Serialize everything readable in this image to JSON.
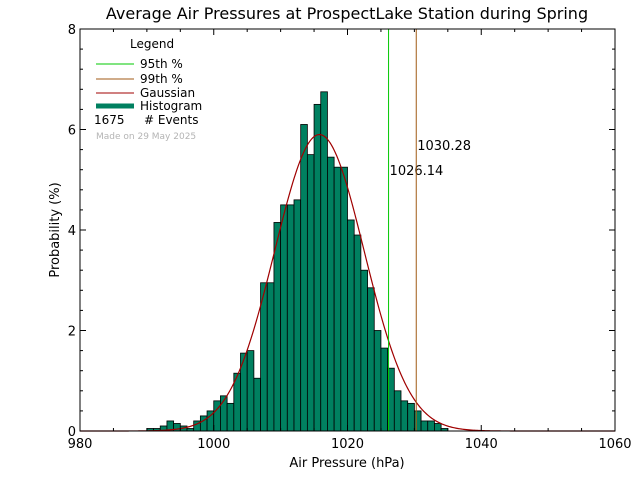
{
  "chart_data": {
    "type": "bar",
    "title": "Average Air Pressures at ProspectLake Station during Spring",
    "xlabel": "Air Pressure (hPa)",
    "ylabel": "Probability (%)",
    "xlim": [
      980,
      1060
    ],
    "ylim": [
      0,
      8
    ],
    "x_ticks": [
      "980",
      "1000",
      "1020",
      "1040",
      "1060"
    ],
    "y_ticks": [
      "0",
      "2",
      "4",
      "6",
      "8"
    ],
    "bin_width": 1,
    "histogram": {
      "name": "Histogram",
      "color": "#008060",
      "bin_starts": [
        990,
        991,
        992,
        993,
        994,
        995,
        996,
        997,
        998,
        999,
        1000,
        1001,
        1002,
        1003,
        1004,
        1005,
        1006,
        1007,
        1008,
        1009,
        1010,
        1011,
        1012,
        1013,
        1014,
        1015,
        1016,
        1017,
        1018,
        1019,
        1020,
        1021,
        1022,
        1023,
        1024,
        1025,
        1026,
        1027,
        1028,
        1029,
        1030,
        1031,
        1032,
        1033,
        1034
      ],
      "values": [
        0.05,
        0.05,
        0.1,
        0.2,
        0.15,
        0.1,
        0.05,
        0.2,
        0.3,
        0.4,
        0.6,
        0.7,
        0.55,
        1.15,
        1.55,
        1.6,
        1.05,
        2.95,
        2.95,
        4.15,
        4.5,
        4.5,
        4.6,
        6.1,
        5.5,
        6.5,
        6.75,
        5.45,
        5.25,
        5.25,
        4.2,
        3.9,
        3.2,
        2.85,
        2.0,
        1.65,
        1.25,
        0.8,
        0.6,
        0.55,
        0.4,
        0.2,
        0.2,
        0.15,
        0.05
      ]
    },
    "gaussian": {
      "name": "Gaussian",
      "color": "#a00000",
      "mean": 1015.8,
      "sd": 6.7,
      "peak": 5.9
    },
    "percentile_lines": [
      {
        "name": "95th %",
        "value": 1026.14,
        "label": "1026.14",
        "color": "#00c800"
      },
      {
        "name": "99th %",
        "value": 1030.28,
        "label": "1030.28",
        "color": "#a05a14"
      }
    ],
    "legend": {
      "title": "Legend",
      "placement": "top-left",
      "entries": [
        "95th %",
        "99th %",
        "Gaussian",
        "Histogram"
      ],
      "events_count": "1675",
      "events_label": "# Events",
      "made_on": "Made on 29 May 2025"
    }
  }
}
